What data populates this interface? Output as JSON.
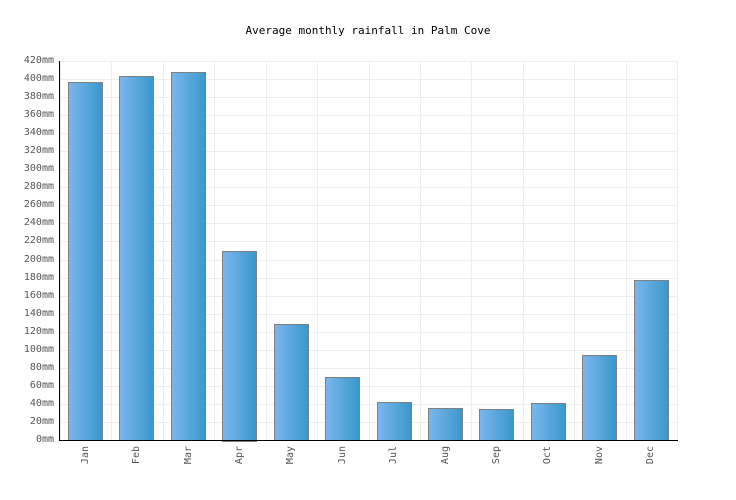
{
  "chart_data": {
    "type": "bar",
    "title": "Average monthly rainfall in Palm Cove",
    "xlabel": "",
    "ylabel": "",
    "categories": [
      "Jan",
      "Feb",
      "Mar",
      "Apr",
      "May",
      "Jun",
      "Jul",
      "Aug",
      "Sep",
      "Oct",
      "Nov",
      "Dec"
    ],
    "values": [
      397,
      403,
      408,
      210,
      128,
      70,
      42,
      36,
      34,
      41,
      94,
      177
    ],
    "unit": "mm",
    "ylim": [
      0,
      420
    ],
    "yticks": [
      "0mm",
      "20mm",
      "40mm",
      "60mm",
      "80mm",
      "100mm",
      "120mm",
      "140mm",
      "160mm",
      "180mm",
      "200mm",
      "220mm",
      "240mm",
      "260mm",
      "280mm",
      "300mm",
      "320mm",
      "340mm",
      "360mm",
      "380mm",
      "400mm",
      "420mm"
    ],
    "grid": true,
    "legend": "none",
    "bar_color": "#4da3dc"
  }
}
